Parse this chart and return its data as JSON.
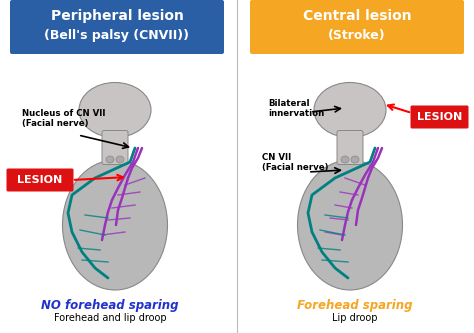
{
  "bg_color": "#ffffff",
  "left_title_line1": "Peripheral lesion",
  "left_title_line2": "(Bell's palsy (CNVII))",
  "left_title_bg": "#2a5fa5",
  "right_title_line1": "Central lesion",
  "right_title_line2": "(Stroke)",
  "right_title_bg": "#f5a623",
  "lesion_label": "LESION",
  "lesion_bg": "#dd1111",
  "left_annotation1_line1": "Nucleus of CN VII",
  "left_annotation1_line2": "(Facial nerve)",
  "right_annotation1_line1": "Bilateral",
  "right_annotation1_line2": "innervation",
  "right_annotation2_line1": "CN VII",
  "right_annotation2_line2": "(Facial nerve)",
  "left_bottom_italic": "NO forehead sparing",
  "left_bottom_italic_color": "#2233cc",
  "left_bottom_sub": "Forehead and lip droop",
  "right_bottom_italic": "Forehead sparing",
  "right_bottom_italic_color": "#f5a623",
  "right_bottom_sub": "Lip droop",
  "face_color": "#b8b8b8",
  "face_edge_color": "#888888",
  "brain_color": "#c8c4c4",
  "nerve_teal": "#008080",
  "nerve_purple": "#9933bb",
  "fig_width": 4.74,
  "fig_height": 3.33,
  "dpi": 100
}
